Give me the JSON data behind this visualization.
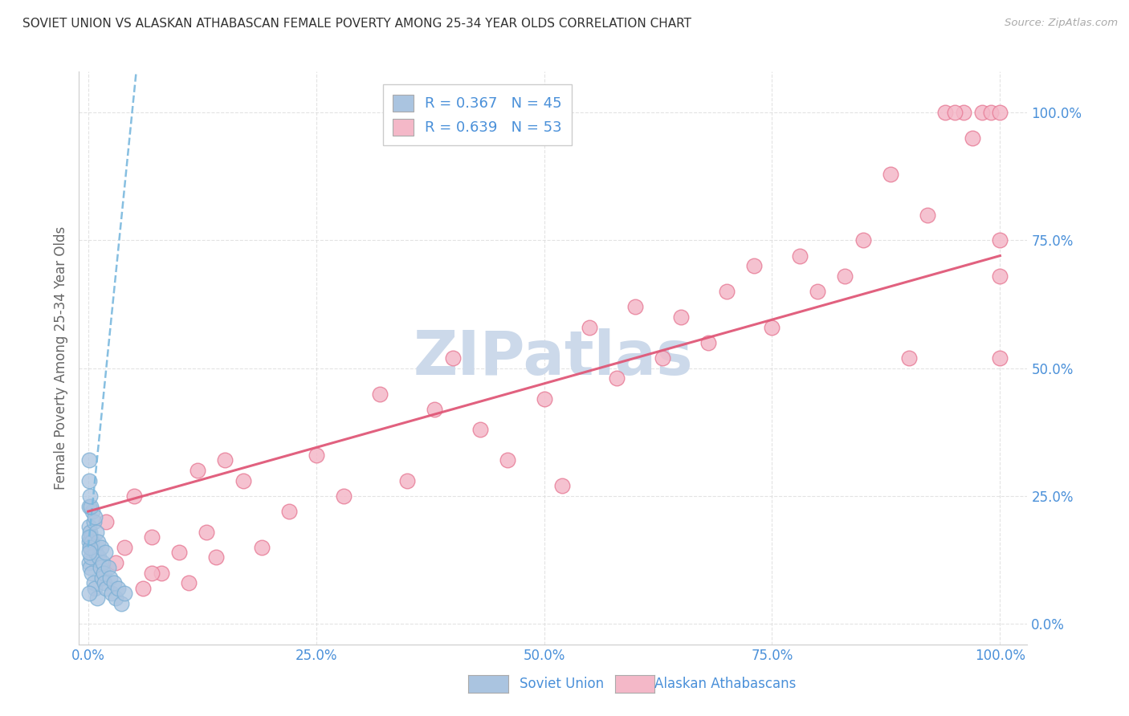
{
  "title": "SOVIET UNION VS ALASKAN ATHABASCAN FEMALE POVERTY AMONG 25-34 YEAR OLDS CORRELATION CHART",
  "source": "Source: ZipAtlas.com",
  "ylabel": "Female Poverty Among 25-34 Year Olds",
  "soviet_color": "#aac4e0",
  "soviet_edge": "#7bafd4",
  "athabascan_color": "#f4b8c8",
  "athabascan_edge": "#e8809a",
  "trend_soviet_color": "#7ab8de",
  "trend_athabascan_color": "#e05878",
  "watermark_color": "#ccd9ea",
  "background_color": "#ffffff",
  "grid_color": "#dddddd",
  "tick_color": "#4a90d9",
  "title_color": "#333333",
  "source_color": "#aaaaaa",
  "ylabel_color": "#666666"
}
